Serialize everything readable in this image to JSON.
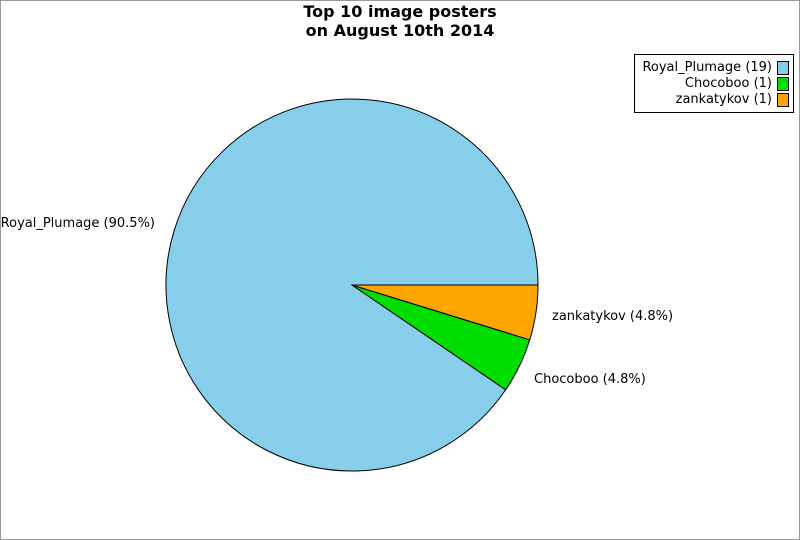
{
  "window": {
    "background": "#ffffff",
    "border_color": "#999999"
  },
  "title": {
    "line1": "Top 10 image posters",
    "line2": "on August 10th 2014"
  },
  "legend": {
    "items": [
      {
        "label": "Royal_Plumage (19)",
        "color": "#87CEEB"
      },
      {
        "label": "Chocoboo (1)",
        "color": "#00DD00"
      },
      {
        "label": "zankatykov (1)",
        "color": "#FFA500"
      }
    ]
  },
  "chart_data": {
    "type": "pie",
    "title": "Top 10 image posters on August 10th 2014",
    "total": 21,
    "slices": [
      {
        "name": "Royal_Plumage",
        "count": 19,
        "percent": 90.5,
        "label": "Royal_Plumage (90.5%)",
        "color": "#87CEEB"
      },
      {
        "name": "Chocoboo",
        "count": 1,
        "percent": 4.8,
        "label": "Chocoboo (4.8%)",
        "color": "#00DD00"
      },
      {
        "name": "zankatykov",
        "count": 1,
        "percent": 4.8,
        "label": "zankatykov (4.8%)",
        "color": "#FFA500"
      }
    ],
    "legend_position": "top-right",
    "start_angle_deg": 0,
    "winding": "counterclockwise",
    "outline_color": "#000000",
    "grid": false
  }
}
